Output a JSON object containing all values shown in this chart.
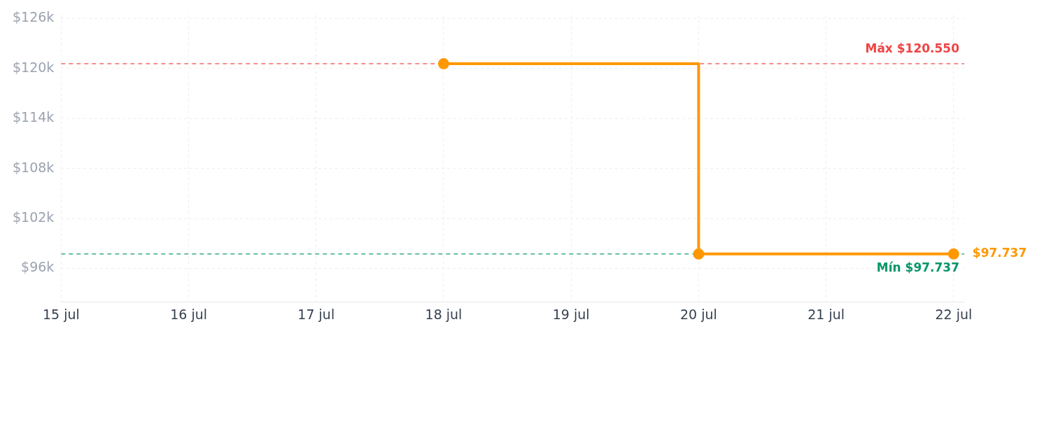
{
  "chart_data": {
    "type": "step",
    "x": [
      "--07-18",
      "--07-20",
      "--07-22"
    ],
    "series": [
      {
        "color": "#ff9800",
        "values": [
          120.55,
          97.737,
          97.737
        ],
        "value_labels": [
          null,
          null,
          "$97.737"
        ]
      }
    ],
    "xlim": [
      "--07-15",
      "--07-22T02:00"
    ],
    "xticks": [
      {
        "value": "--07-15",
        "label": "15 jul"
      },
      {
        "value": "--07-16",
        "label": "16 jul"
      },
      {
        "value": "--07-17",
        "label": "17 jul"
      },
      {
        "value": "--07-18",
        "label": "18 jul"
      },
      {
        "value": "--07-19",
        "label": "19 jul"
      },
      {
        "value": "--07-20",
        "label": "20 jul"
      },
      {
        "value": "--07-21",
        "label": "21 jul"
      },
      {
        "value": "--07-22",
        "label": "22 jul"
      }
    ],
    "ylim": [
      92,
      126.4
    ],
    "yticks": [
      {
        "value": 96,
        "label": "$96k"
      },
      {
        "value": 102,
        "label": "$102k"
      },
      {
        "value": 108,
        "label": "$108k"
      },
      {
        "value": 114,
        "label": "$114k"
      },
      {
        "value": 120,
        "label": "$120k"
      },
      {
        "value": 126,
        "label": "$126k"
      }
    ],
    "ref_lines": [
      {
        "axis": "y",
        "value": 120.55,
        "label": "Máx $120.550",
        "color": "#ef4444",
        "line_style": "dashed"
      },
      {
        "axis": "y",
        "value": 97.737,
        "label": "Mín $97.737",
        "color": "#059669",
        "line_style": "dashed"
      }
    ],
    "grid": true,
    "marker": "circle",
    "line_style": "solid"
  }
}
